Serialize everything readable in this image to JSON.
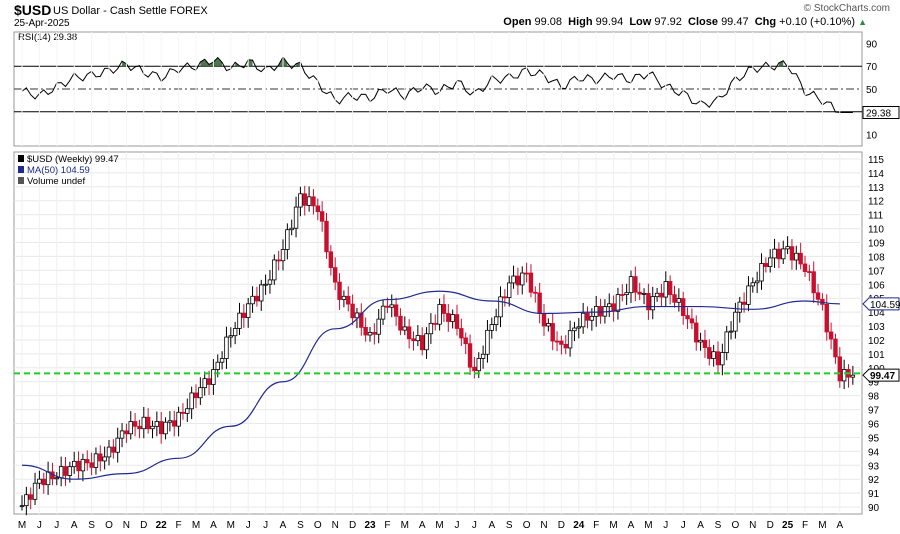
{
  "header": {
    "symbol": "$USD",
    "description": "US Dollar - Cash Settle FOREX",
    "date": "25-Apr-2025",
    "logo": "© StockCharts.com",
    "open_label": "Open",
    "open": "99.08",
    "high_label": "High",
    "high": "99.94",
    "low_label": "Low",
    "low": "97.92",
    "close_label": "Close",
    "close": "99.47",
    "chg_label": "Chg",
    "chg": "+0.10 (+0.10%)"
  },
  "chart_data": [
    {
      "type": "line",
      "title": "RSI(14) 29.38",
      "series_label": "RSI(14)",
      "current_value": "29.38",
      "y_ticks": [
        90,
        70,
        50,
        30,
        10
      ],
      "ylim": [
        0,
        100
      ],
      "overbought": 70,
      "oversold": 30,
      "midline": 50,
      "x": [
        "2021-05",
        "2021-06",
        "2021-07",
        "2021-08",
        "2021-09",
        "2021-10",
        "2021-11",
        "2021-12",
        "2022-01",
        "2022-02",
        "2022-03",
        "2022-04",
        "2022-05",
        "2022-06",
        "2022-07",
        "2022-08",
        "2022-09",
        "2022-10",
        "2022-11",
        "2022-12",
        "2023-01",
        "2023-02",
        "2023-03",
        "2023-04",
        "2023-05",
        "2023-06",
        "2023-07",
        "2023-08",
        "2023-09",
        "2023-10",
        "2023-11",
        "2023-12",
        "2024-01",
        "2024-02",
        "2024-03",
        "2024-04",
        "2024-05",
        "2024-06",
        "2024-07",
        "2024-08",
        "2024-09",
        "2024-10",
        "2024-11",
        "2024-12",
        "2025-01",
        "2025-02",
        "2025-03",
        "2025-04"
      ],
      "values": [
        48,
        44,
        52,
        60,
        62,
        66,
        72,
        65,
        60,
        68,
        70,
        76,
        68,
        74,
        66,
        74,
        70,
        55,
        40,
        44,
        42,
        50,
        44,
        52,
        48,
        56,
        45,
        58,
        60,
        66,
        62,
        52,
        60,
        58,
        62,
        58,
        64,
        52,
        46,
        36,
        40,
        58,
        68,
        70,
        72,
        48,
        40,
        29.38
      ],
      "colors": {
        "line": "#000000",
        "fill_overbought": "#2f5d2f"
      }
    },
    {
      "type": "line",
      "title": "$USD (Weekly) 99.47",
      "legend": [
        {
          "label": "$USD (Weekly) 99.47",
          "color": "#000000"
        },
        {
          "label": "MA(50) 104.59",
          "color": "#1f2a8f"
        },
        {
          "label": "Volume undef",
          "color": "#555555"
        }
      ],
      "price_tag": "99.47",
      "ma_tag": "104.59",
      "support_level": 99.6,
      "y_ticks": [
        90,
        91,
        92,
        93,
        94,
        95,
        96,
        97,
        98,
        99,
        100,
        101,
        102,
        103,
        104,
        105,
        106,
        107,
        108,
        109,
        110,
        111,
        112,
        113,
        114,
        115
      ],
      "ylim": [
        89.5,
        115.5
      ],
      "x_labels": [
        "M",
        "J",
        "J",
        "A",
        "S",
        "O",
        "N",
        "D",
        "22",
        "F",
        "M",
        "A",
        "M",
        "J",
        "J",
        "A",
        "S",
        "O",
        "N",
        "D",
        "23",
        "F",
        "M",
        "A",
        "M",
        "J",
        "J",
        "A",
        "S",
        "O",
        "N",
        "D",
        "24",
        "F",
        "M",
        "A",
        "M",
        "J",
        "J",
        "A",
        "S",
        "O",
        "N",
        "D",
        "25",
        "F",
        "M",
        "A"
      ],
      "series": [
        {
          "name": "$USD",
          "x": [
            "2021-05",
            "2021-06",
            "2021-07",
            "2021-08",
            "2021-09",
            "2021-10",
            "2021-11",
            "2021-12",
            "2022-01",
            "2022-02",
            "2022-03",
            "2022-04",
            "2022-05",
            "2022-06",
            "2022-07",
            "2022-08",
            "2022-09",
            "2022-10",
            "2022-11",
            "2022-12",
            "2023-01",
            "2023-02",
            "2023-03",
            "2023-04",
            "2023-05",
            "2023-06",
            "2023-07",
            "2023-08",
            "2023-09",
            "2023-10",
            "2023-11",
            "2023-12",
            "2024-01",
            "2024-02",
            "2024-03",
            "2024-04",
            "2024-05",
            "2024-06",
            "2024-07",
            "2024-08",
            "2024-09",
            "2024-10",
            "2024-11",
            "2024-12",
            "2025-01",
            "2025-02",
            "2025-03",
            "2025-04"
          ],
          "values": [
            90.1,
            91.9,
            92.3,
            93.0,
            93.2,
            93.9,
            95.7,
            96.0,
            95.7,
            96.4,
            98.2,
            99.6,
            102.5,
            104.5,
            106.0,
            108.6,
            112.3,
            111.5,
            105.8,
            104.0,
            102.1,
            104.8,
            102.5,
            101.7,
            104.2,
            103.1,
            99.6,
            103.2,
            106.1,
            106.7,
            103.2,
            101.4,
            103.3,
            104.0,
            104.5,
            106.1,
            104.6,
            105.8,
            104.1,
            101.7,
            100.4,
            103.9,
            106.1,
            108.0,
            108.5,
            107.2,
            104.2,
            99.47
          ]
        },
        {
          "name": "MA(50)",
          "x": [
            "2021-05",
            "2021-08",
            "2021-11",
            "2022-02",
            "2022-05",
            "2022-08",
            "2022-11",
            "2023-02",
            "2023-05",
            "2023-08",
            "2023-11",
            "2024-02",
            "2024-05",
            "2024-08",
            "2024-11",
            "2025-02",
            "2025-04"
          ],
          "values": [
            93.0,
            92.0,
            92.4,
            93.5,
            95.8,
            99.0,
            102.8,
            104.9,
            105.5,
            104.8,
            103.9,
            104.0,
            104.4,
            104.4,
            104.2,
            104.8,
            104.59
          ]
        }
      ]
    }
  ]
}
